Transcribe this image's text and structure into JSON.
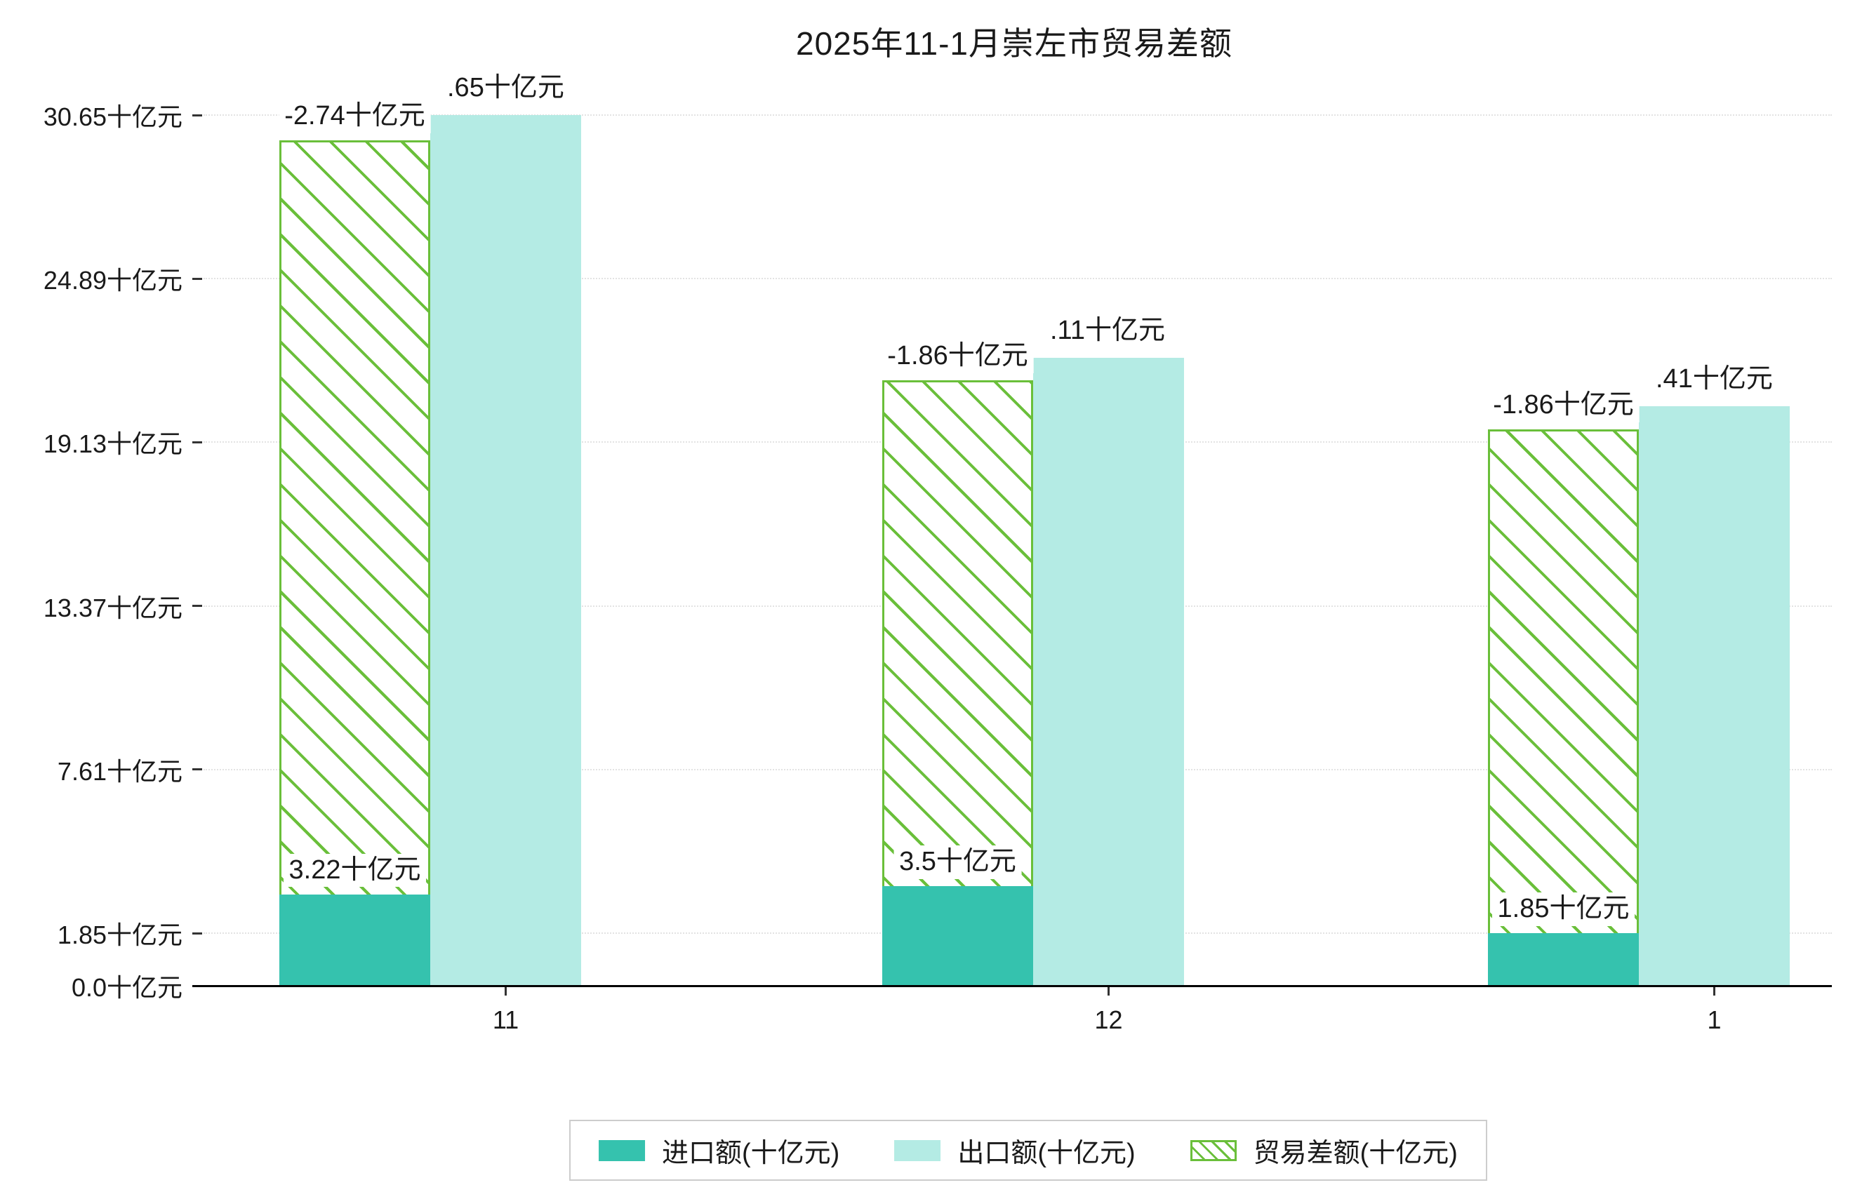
{
  "chart_data": {
    "type": "bar",
    "title": "2025年11-1月崇左市贸易差额",
    "categories": [
      "11",
      "12",
      "1"
    ],
    "unit": "十亿元",
    "series": [
      {
        "name": "进口额(十亿元)",
        "values": [
          3.22,
          3.5,
          1.85
        ],
        "labels": [
          "3.22十亿元",
          "3.5十亿元",
          "1.85十亿元"
        ],
        "color": "#35c2ae",
        "style": "solid"
      },
      {
        "name": "出口额(十亿元)",
        "values": [
          30.65,
          22.11,
          20.41
        ],
        "labels_visible": [
          ".65十亿元",
          ".11十亿元",
          ".41十亿元"
        ],
        "color": "#b4ebe4",
        "style": "solid"
      },
      {
        "name": "贸易差额(十亿元)",
        "values": [
          -2.74,
          -1.86,
          -1.86
        ],
        "labels": [
          "-2.74十亿元",
          "-1.86十亿元",
          "-1.86十亿元"
        ],
        "color": "#6abf3a",
        "style": "hatched",
        "bar_top": [
          29.76,
          21.31,
          19.59
        ]
      }
    ],
    "y_axis": {
      "ticks": [
        0.0,
        1.85,
        7.61,
        13.37,
        19.13,
        24.89,
        30.65
      ],
      "tick_labels": [
        "0.0十亿元",
        "1.85十亿元",
        "7.61十亿元",
        "13.37十亿元",
        "19.13十亿元",
        "24.89十亿元",
        "30.65十亿元"
      ],
      "min": 0,
      "max": 30.65
    },
    "legend_labels": [
      "进口额(十亿元)",
      "出口额(十亿元)",
      "贸易差额(十亿元)"
    ],
    "legend_position": "bottom",
    "grid": "dotted-horizontal"
  },
  "colors": {
    "import": "#35c2ae",
    "export": "#b4ebe4",
    "balance": "#6abf3a",
    "grid": "#e3e3e3",
    "axis": "#000000",
    "text": "#1a1a1a",
    "label_background": "#ffffff",
    "legend_border": "#cccccc",
    "page_background": "#ffffff"
  }
}
